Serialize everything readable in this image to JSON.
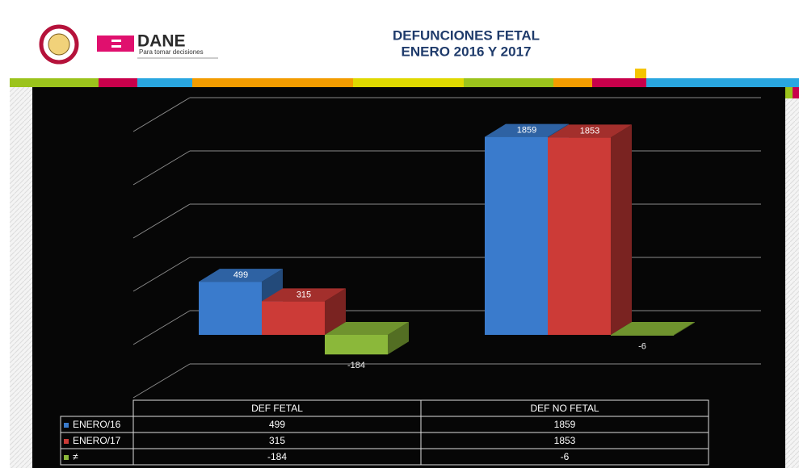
{
  "header": {
    "brand": "DANE",
    "tagline": "Para tomar decisiones"
  },
  "chart_data": {
    "type": "bar3d",
    "title": [
      "DEFUNCIONES FETAL",
      "ENERO 2016 Y 2017"
    ],
    "categories": [
      "DEF FETAL",
      "DEF NO FETAL"
    ],
    "series": [
      {
        "name": "ENERO/16",
        "color": "#3a7bcc",
        "values": [
          499,
          1859
        ]
      },
      {
        "name": "ENERO/17",
        "color": "#cc3b37",
        "values": [
          315,
          1853
        ]
      },
      {
        "name": "≠",
        "color": "#8bb83a",
        "values": [
          -184,
          -6
        ]
      }
    ],
    "ylim": [
      -500,
      2000
    ],
    "yticks": [
      -500,
      0,
      500,
      1000,
      1500,
      2000
    ],
    "grid": true
  }
}
